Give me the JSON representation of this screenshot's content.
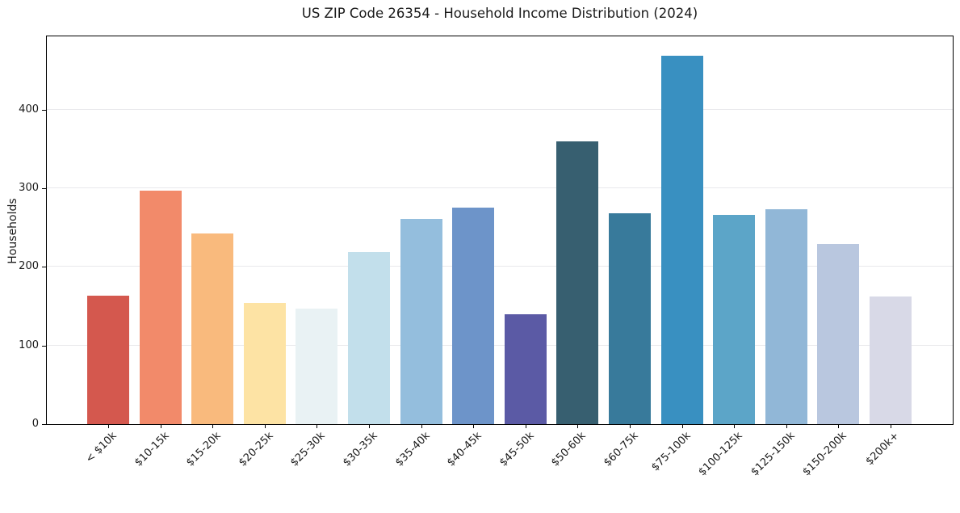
{
  "chart_data": {
    "type": "bar",
    "title": "US ZIP Code 26354 - Household Income Distribution (2024)",
    "xlabel": "",
    "ylabel": "Households",
    "ylim": [
      0,
      493
    ],
    "yticks": [
      0,
      100,
      200,
      300,
      400
    ],
    "grid": "horizontal gridlines at y ticks, behind bars",
    "legend": "none",
    "categories": [
      "< $10k",
      "$10-15k",
      "$15-20k",
      "$20-25k",
      "$25-30k",
      "$30-35k",
      "$35-40k",
      "$40-45k",
      "$45-50k",
      "$50-60k",
      "$60-75k",
      "$75-100k",
      "$100-125k",
      "$125-150k",
      "$150-200k",
      "$200k+"
    ],
    "values": [
      163,
      297,
      242,
      154,
      147,
      219,
      261,
      275,
      140,
      359,
      268,
      468,
      266,
      273,
      229,
      162
    ],
    "bar_colors": [
      "#d4584e",
      "#f28a6a",
      "#f9ba7d",
      "#fde3a4",
      "#e9f2f4",
      "#c2dfeb",
      "#94bedd",
      "#6d94c9",
      "#5b5aa5",
      "#375f70",
      "#387a9b",
      "#3990c1",
      "#5ca5c8",
      "#91b7d7",
      "#b9c7df",
      "#d8d9e7"
    ],
    "colors": {
      "background": "#ffffff",
      "gridline": "#e9e9ec",
      "spine": "#000000",
      "text": "#1a1a1a"
    }
  }
}
